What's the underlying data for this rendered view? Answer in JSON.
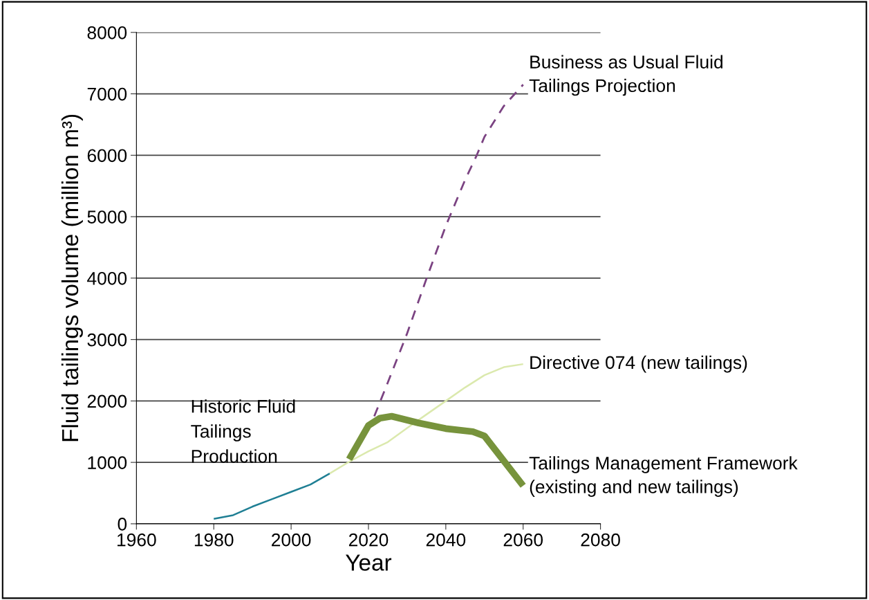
{
  "chart_data": {
    "type": "line",
    "xlabel": "Year",
    "ylabel": "Fluid tailings volume (million m³)",
    "xlim": [
      1960,
      2080
    ],
    "xticks": [
      1960,
      1980,
      2000,
      2020,
      2040,
      2060,
      2080
    ],
    "ylim": [
      0,
      8000
    ],
    "yticks": [
      0,
      1000,
      2000,
      3000,
      4000,
      5000,
      6000,
      7000,
      8000
    ],
    "grid": "y",
    "marker": "none",
    "series": [
      {
        "name": "Historic Fluid\nTailings\nProduction",
        "color": "#1f7f94",
        "line_style": "solid",
        "x": [
          1980,
          1985,
          1990,
          1995,
          2000,
          2005,
          2010
        ],
        "values": [
          80,
          140,
          280,
          400,
          520,
          640,
          820
        ]
      },
      {
        "name": "Directive 074 (new tailings)",
        "color": "#dbe9ad",
        "line_style": "solid",
        "x": [
          2010,
          2015,
          2020,
          2025,
          2030,
          2035,
          2040,
          2045,
          2050,
          2055,
          2060
        ],
        "values": [
          820,
          1010,
          1180,
          1330,
          1560,
          1780,
          2000,
          2220,
          2420,
          2550,
          2600
        ]
      },
      {
        "name": "Business as Usual Fluid\nTailings Projection",
        "color": "#7b4382",
        "line_style": "dashed",
        "x": [
          2021.5,
          2025,
          2030,
          2035,
          2040,
          2045,
          2048,
          2050,
          2055,
          2060
        ],
        "values": [
          1750,
          2300,
          3100,
          3990,
          4850,
          5600,
          6000,
          6300,
          6800,
          7150
        ]
      },
      {
        "name": "Tailings Management Framework\n(existing and new tailings)",
        "color": "#77933c",
        "line_style": "solid",
        "x": [
          2015,
          2020,
          2023,
          2026,
          2028,
          2033,
          2040,
          2047,
          2050,
          2060
        ],
        "values": [
          1050,
          1600,
          1720,
          1750,
          1720,
          1640,
          1550,
          1500,
          1430,
          620
        ]
      }
    ]
  }
}
